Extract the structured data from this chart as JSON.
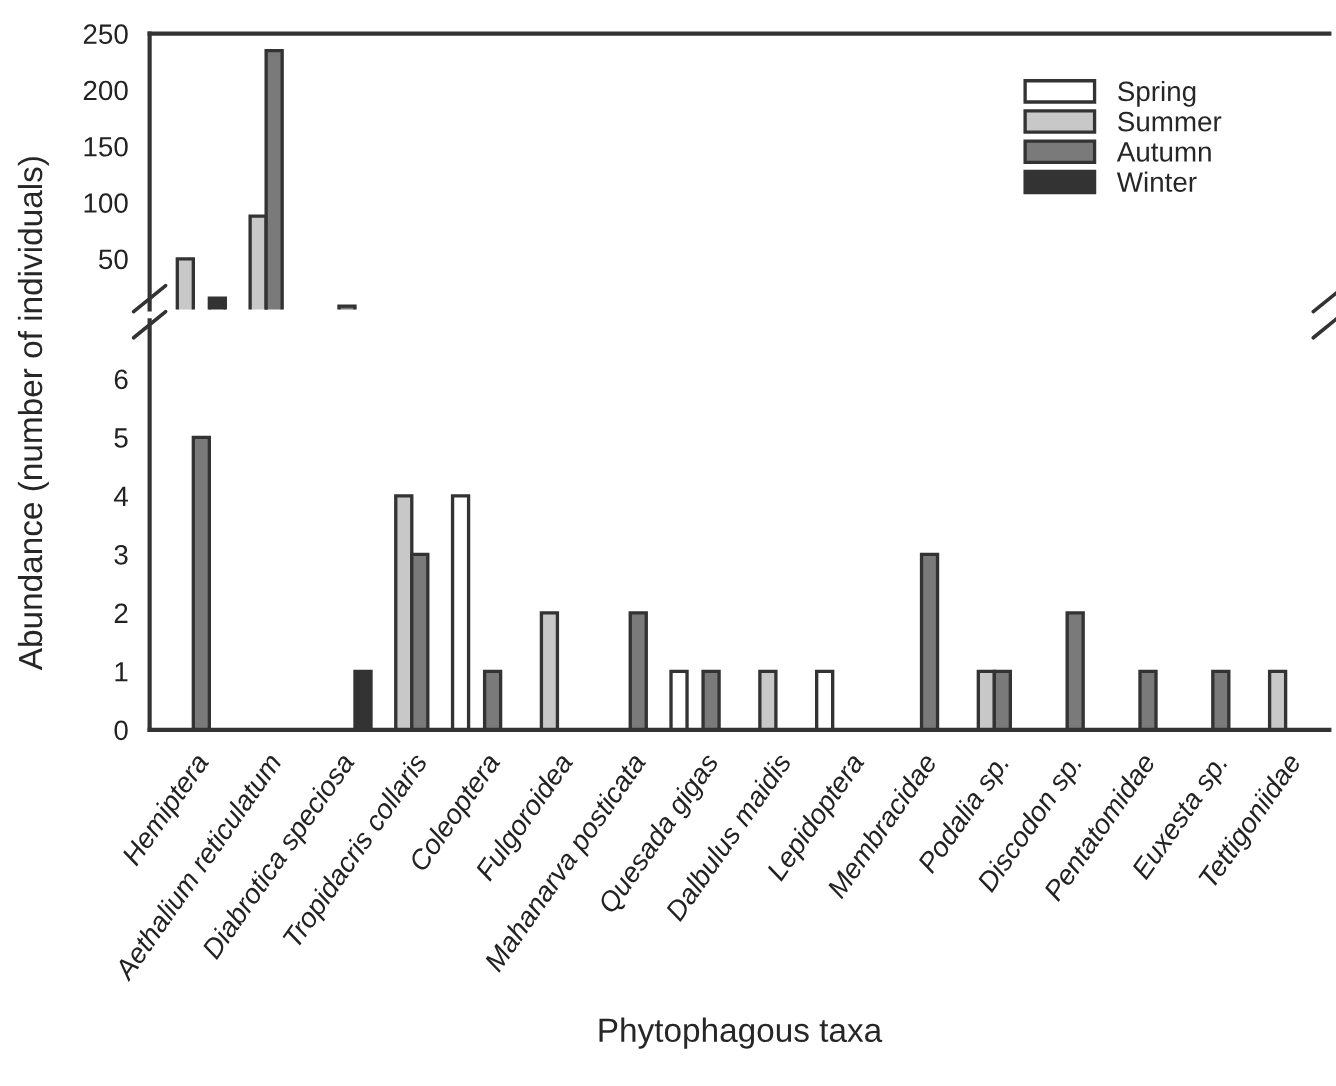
{
  "chart_data": [
    {
      "type": "bar",
      "ylabel": "Abundance (number of individuals)",
      "series": [
        {
          "name": "Spring",
          "color": "#ffffff",
          "values": [
            null,
            null,
            null,
            null,
            null,
            null,
            null,
            null,
            null,
            null,
            null,
            null,
            null,
            null,
            null,
            null
          ]
        },
        {
          "name": "Summer",
          "color": "#c8c8c8",
          "values": [
            50,
            88,
            null,
            null,
            null,
            null,
            null,
            null,
            null,
            null,
            null,
            null,
            null,
            null,
            null,
            null
          ]
        },
        {
          "name": "Autumn",
          "color": "#7a7a7a",
          "values": [
            null,
            235,
            8,
            null,
            null,
            null,
            null,
            null,
            null,
            null,
            null,
            null,
            null,
            null,
            null,
            null
          ]
        },
        {
          "name": "Winter",
          "color": "#333333",
          "values": [
            15,
            null,
            null,
            null,
            null,
            null,
            null,
            null,
            null,
            null,
            null,
            null,
            null,
            null,
            null,
            null
          ]
        }
      ],
      "ylim": [
        5,
        250
      ],
      "yticks": [
        50,
        100,
        150,
        200,
        250
      ],
      "tick_labels": "y",
      "legend": "top right"
    },
    {
      "type": "bar",
      "xlabel": "Phytophagous taxa",
      "categories": [
        "Hemiptera",
        "Aethalium reticulatum",
        "Diabrotica speciosa",
        "Tropidacris collaris",
        "Coleoptera",
        "Fulgoroidea",
        "Mahanarva posticata",
        "Quesada gigas",
        "Dalbulus maidis",
        "Lepidoptera",
        "Membracidae",
        "Podalia sp.",
        "Discodon sp.",
        "Pentatomidae",
        "Euxesta sp.",
        "Tettigoniidae"
      ],
      "series": [
        {
          "color": "#ffffff",
          "values": [
            null,
            null,
            null,
            null,
            4,
            null,
            null,
            1,
            null,
            1,
            null,
            null,
            null,
            null,
            null,
            null
          ]
        },
        {
          "color": "#c8c8c8",
          "values": [
            null,
            null,
            null,
            4,
            null,
            2,
            null,
            null,
            1,
            null,
            null,
            1,
            null,
            null,
            null,
            1
          ]
        },
        {
          "color": "#7a7a7a",
          "values": [
            5,
            null,
            null,
            3,
            1,
            null,
            2,
            1,
            null,
            null,
            3,
            1,
            2,
            1,
            1,
            null
          ]
        },
        {
          "color": "#333333",
          "values": [
            null,
            null,
            1,
            null,
            null,
            null,
            null,
            null,
            null,
            null,
            null,
            null,
            null,
            null,
            null,
            null
          ]
        }
      ],
      "ylim": [
        0,
        7
      ],
      "yticks": [
        0,
        1,
        2,
        3,
        4,
        5,
        6
      ]
    }
  ]
}
